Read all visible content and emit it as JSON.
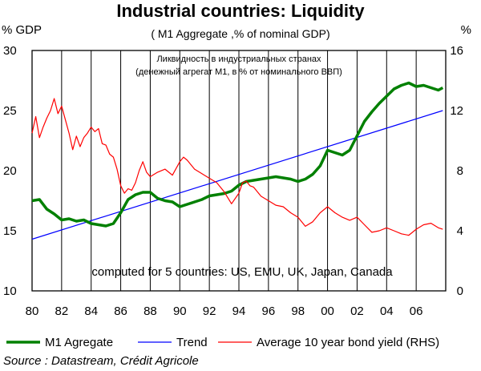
{
  "chart_data": {
    "type": "line",
    "title": "Industrial countries:  Liquidity",
    "subtitle": "( M1 Aggregate ,% of nominal GDP)",
    "russian_subtitle_line1": "Ликвидность в индустриальных странах",
    "russian_subtitle_line2": "(денежный агрегат М1, в % от номинального ВВП)",
    "left_axis_unit": "% GDP",
    "right_axis_unit": "%",
    "left_ylim": [
      10,
      30
    ],
    "right_ylim": [
      0,
      16
    ],
    "left_ticks": [
      "10",
      "15",
      "20",
      "25",
      "30"
    ],
    "right_ticks": [
      "0",
      "4",
      "8",
      "12",
      "16"
    ],
    "xlim": [
      1980,
      2008
    ],
    "x_tick_labels": [
      "80",
      "82",
      "84",
      "86",
      "88",
      "90",
      "92",
      "94",
      "96",
      "98",
      "00",
      "02",
      "04",
      "06"
    ],
    "annotation": "computed for 5 countries: US, EMU, UK, Japan, Canada",
    "source": "Source : Datastream, Crédit Agricole",
    "series": [
      {
        "name": "M1 Agregate",
        "axis": "left",
        "color": "#008000",
        "x": [
          1980.0,
          1980.5,
          1981.0,
          1981.5,
          1982.0,
          1982.5,
          1983.0,
          1983.5,
          1984.0,
          1984.5,
          1985.0,
          1985.5,
          1986.0,
          1986.5,
          1987.0,
          1987.5,
          1988.0,
          1988.5,
          1989.0,
          1989.5,
          1990.0,
          1990.5,
          1991.0,
          1991.5,
          1992.0,
          1992.5,
          1993.0,
          1993.5,
          1994.0,
          1994.5,
          1995.0,
          1995.5,
          1996.0,
          1996.5,
          1997.0,
          1997.5,
          1998.0,
          1998.5,
          1999.0,
          1999.5,
          2000.0,
          2000.5,
          2001.0,
          2001.5,
          2002.0,
          2002.5,
          2003.0,
          2003.5,
          2004.0,
          2004.5,
          2005.0,
          2005.5,
          2006.0,
          2006.5,
          2007.0,
          2007.5,
          2007.8
        ],
        "values": [
          17.5,
          17.6,
          16.8,
          16.4,
          15.9,
          16.0,
          15.8,
          15.9,
          15.6,
          15.5,
          15.4,
          15.6,
          16.5,
          17.6,
          18.0,
          18.2,
          18.2,
          17.7,
          17.5,
          17.4,
          17.0,
          17.2,
          17.4,
          17.6,
          17.9,
          18.0,
          18.1,
          18.3,
          18.8,
          19.1,
          19.2,
          19.3,
          19.4,
          19.5,
          19.4,
          19.3,
          19.1,
          19.3,
          19.7,
          20.4,
          21.7,
          21.5,
          21.3,
          21.7,
          22.9,
          24.1,
          24.9,
          25.6,
          26.2,
          26.8,
          27.1,
          27.3,
          27.0,
          27.1,
          26.9,
          26.7,
          26.9
        ]
      },
      {
        "name": "Trend",
        "axis": "left",
        "color": "#0000ff",
        "x": [
          1980.0,
          2007.8
        ],
        "values": [
          14.3,
          25.0
        ]
      },
      {
        "name": "Average 10 year bond yield (RHS)",
        "axis": "right",
        "color": "#ff0000",
        "x": [
          1980.0,
          1980.25,
          1980.5,
          1980.75,
          1981.0,
          1981.25,
          1981.5,
          1981.75,
          1982.0,
          1982.25,
          1982.5,
          1982.75,
          1983.0,
          1983.25,
          1983.5,
          1983.75,
          1984.0,
          1984.25,
          1984.5,
          1984.75,
          1985.0,
          1985.25,
          1985.5,
          1985.75,
          1986.0,
          1986.25,
          1986.5,
          1986.75,
          1987.0,
          1987.25,
          1987.5,
          1987.75,
          1988.0,
          1988.5,
          1989.0,
          1989.5,
          1990.0,
          1990.25,
          1990.5,
          1990.75,
          1991.0,
          1991.5,
          1992.0,
          1992.5,
          1993.0,
          1993.5,
          1994.0,
          1994.25,
          1994.5,
          1994.75,
          1995.0,
          1995.5,
          1996.0,
          1996.5,
          1997.0,
          1997.5,
          1998.0,
          1998.5,
          1999.0,
          1999.5,
          2000.0,
          2000.5,
          2001.0,
          2001.5,
          2002.0,
          2002.5,
          2003.0,
          2003.5,
          2004.0,
          2004.5,
          2005.0,
          2005.5,
          2006.0,
          2006.5,
          2007.0,
          2007.5,
          2007.8
        ],
        "values": [
          10.5,
          11.6,
          10.2,
          10.9,
          11.5,
          12.0,
          12.8,
          11.8,
          12.3,
          11.4,
          10.5,
          9.4,
          10.3,
          9.6,
          10.2,
          10.5,
          10.9,
          10.6,
          10.8,
          9.8,
          9.7,
          9.1,
          8.9,
          8.1,
          7.0,
          6.5,
          6.8,
          6.7,
          7.2,
          8.0,
          8.6,
          7.9,
          7.6,
          7.9,
          8.1,
          7.7,
          8.6,
          8.9,
          8.7,
          8.4,
          8.1,
          7.8,
          7.5,
          7.2,
          6.6,
          5.8,
          6.5,
          7.2,
          7.3,
          7.0,
          6.9,
          6.3,
          6.0,
          5.7,
          5.6,
          5.2,
          4.9,
          4.3,
          4.6,
          5.2,
          5.6,
          5.2,
          4.9,
          4.7,
          4.9,
          4.4,
          3.9,
          4.0,
          4.2,
          4.0,
          3.8,
          3.7,
          4.1,
          4.4,
          4.5,
          4.2,
          4.1
        ]
      }
    ]
  }
}
